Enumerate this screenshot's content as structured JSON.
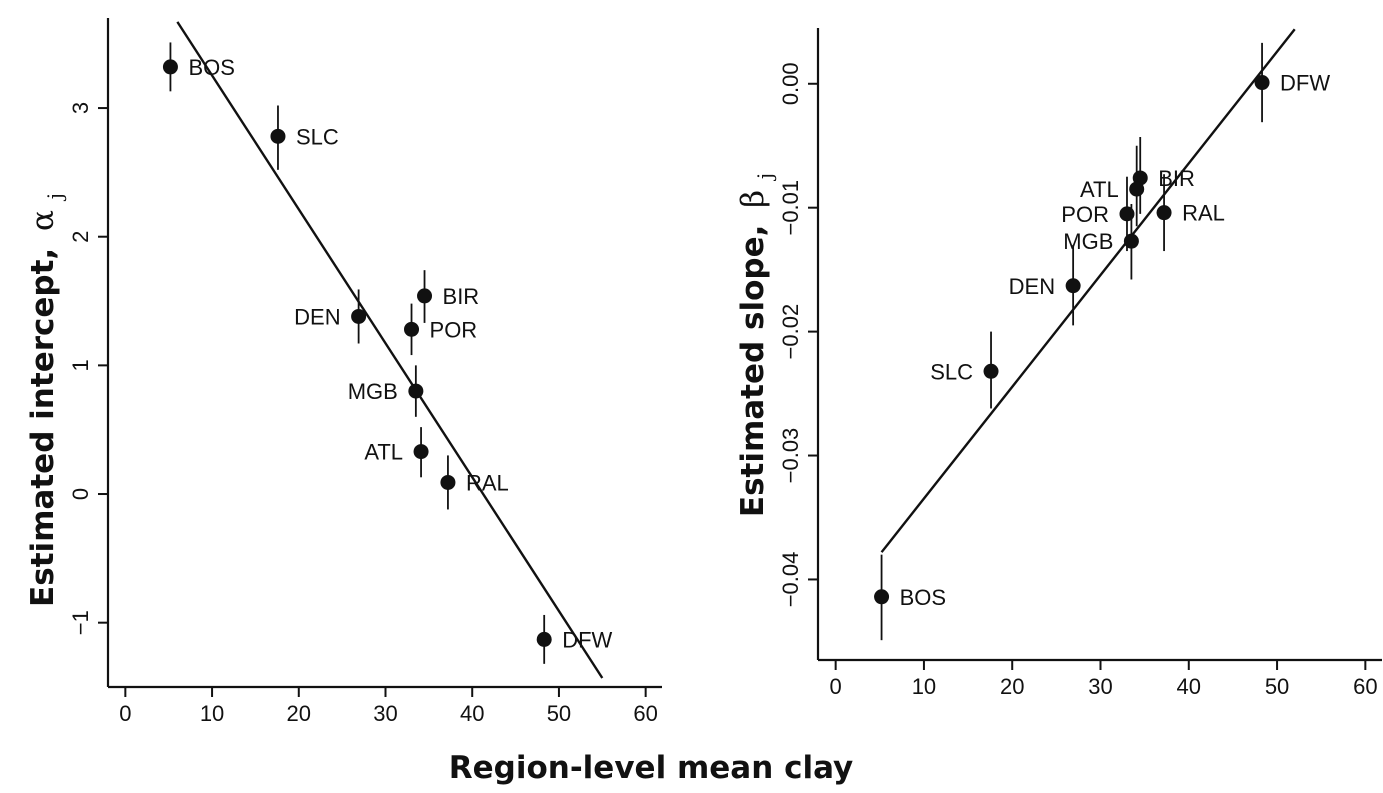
{
  "figure": {
    "xlabel": "Region-level mean clay"
  },
  "chart_data": [
    {
      "type": "scatter",
      "ylabel": "Estimated intercept,",
      "ylabel_symbol": "α",
      "ylabel_subscript": "j",
      "xlim": [
        -2,
        62
      ],
      "ylim": [
        -1.5,
        3.7
      ],
      "xticks": [
        0,
        10,
        20,
        30,
        40,
        50,
        60
      ],
      "yticks": [
        -1,
        0,
        1,
        2,
        3
      ],
      "ytick_labels": [
        "−1",
        "0",
        "1",
        "2",
        "3"
      ],
      "points": [
        {
          "label": "BOS",
          "x": 5.2,
          "y": 3.32,
          "err_low": 3.13,
          "err_high": 3.51,
          "label_side": "right"
        },
        {
          "label": "SLC",
          "x": 17.6,
          "y": 2.78,
          "err_low": 2.52,
          "err_high": 3.02,
          "label_side": "right"
        },
        {
          "label": "DEN",
          "x": 26.9,
          "y": 1.38,
          "err_low": 1.17,
          "err_high": 1.59,
          "label_side": "left"
        },
        {
          "label": "BIR",
          "x": 34.5,
          "y": 1.54,
          "err_low": 1.33,
          "err_high": 1.74,
          "label_side": "right"
        },
        {
          "label": "POR",
          "x": 33.0,
          "y": 1.28,
          "err_low": 1.08,
          "err_high": 1.48,
          "label_side": "right"
        },
        {
          "label": "MGB",
          "x": 33.5,
          "y": 0.8,
          "err_low": 0.6,
          "err_high": 1.0,
          "label_side": "left"
        },
        {
          "label": "ATL",
          "x": 34.1,
          "y": 0.33,
          "err_low": 0.13,
          "err_high": 0.52,
          "label_side": "left"
        },
        {
          "label": "RAL",
          "x": 37.2,
          "y": 0.09,
          "err_low": -0.12,
          "err_high": 0.3,
          "label_side": "right"
        },
        {
          "label": "DFW",
          "x": 48.3,
          "y": -1.13,
          "err_low": -1.32,
          "err_high": -0.94,
          "label_side": "right"
        }
      ],
      "fit_line": {
        "x": [
          6.0,
          55.0
        ],
        "y": [
          3.67,
          -1.43
        ]
      }
    },
    {
      "type": "scatter",
      "ylabel": "Estimated slope,",
      "ylabel_symbol": "β",
      "ylabel_subscript": "j",
      "xlim": [
        -2,
        62
      ],
      "ylim": [
        -0.0465,
        0.0045
      ],
      "xticks": [
        0,
        10,
        20,
        30,
        40,
        50,
        60
      ],
      "yticks": [
        -0.04,
        -0.03,
        -0.02,
        -0.01,
        0.0
      ],
      "ytick_labels": [
        "−0.04",
        "−0.03",
        "−0.02",
        "−0.01",
        "0.00"
      ],
      "points": [
        {
          "label": "DFW",
          "x": 48.3,
          "y": 0.0001,
          "err_low": -0.0031,
          "err_high": 0.0033,
          "label_side": "right"
        },
        {
          "label": "BIR",
          "x": 34.5,
          "y": -0.0076,
          "err_low": -0.0105,
          "err_high": -0.0043,
          "label_side": "right"
        },
        {
          "label": "ATL",
          "x": 34.1,
          "y": -0.0085,
          "err_low": -0.0115,
          "err_high": -0.005,
          "label_side": "left"
        },
        {
          "label": "POR",
          "x": 33.0,
          "y": -0.0105,
          "err_low": -0.0135,
          "err_high": -0.0075,
          "label_side": "left"
        },
        {
          "label": "RAL",
          "x": 37.2,
          "y": -0.0104,
          "err_low": -0.0135,
          "err_high": -0.0073,
          "label_side": "right"
        },
        {
          "label": "MGB",
          "x": 33.5,
          "y": -0.0127,
          "err_low": -0.0158,
          "err_high": -0.0097,
          "label_side": "left"
        },
        {
          "label": "DEN",
          "x": 26.9,
          "y": -0.0163,
          "err_low": -0.0195,
          "err_high": -0.013,
          "label_side": "left"
        },
        {
          "label": "SLC",
          "x": 17.6,
          "y": -0.0232,
          "err_low": -0.0262,
          "err_high": -0.02,
          "label_side": "left"
        },
        {
          "label": "BOS",
          "x": 5.2,
          "y": -0.0414,
          "err_low": -0.0449,
          "err_high": -0.038,
          "label_side": "right"
        }
      ],
      "fit_line": {
        "x": [
          5.2,
          52.0
        ],
        "y": [
          -0.0378,
          0.0044
        ]
      }
    }
  ]
}
